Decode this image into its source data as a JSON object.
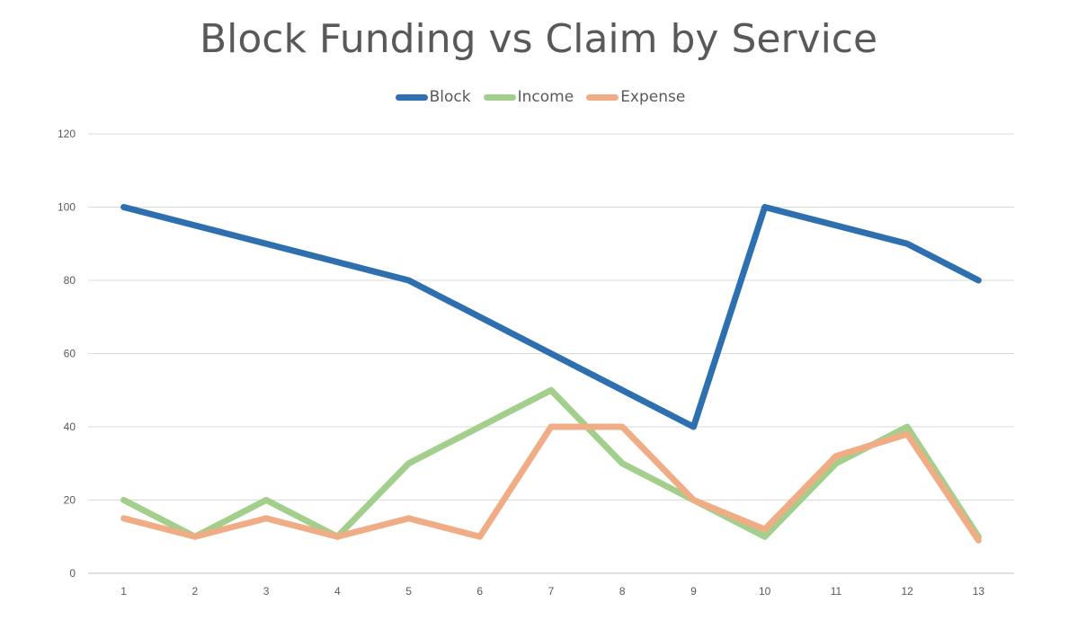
{
  "chart_data": {
    "type": "line",
    "title": "Block Funding vs Claim by Service",
    "categories": [
      "1",
      "2",
      "3",
      "4",
      "5",
      "6",
      "7",
      "8",
      "9",
      "10",
      "11",
      "12",
      "13"
    ],
    "ylim": [
      0,
      120
    ],
    "yticks": [
      "0",
      "20",
      "40",
      "60",
      "80",
      "100",
      "120"
    ],
    "grid": true,
    "legend_position": "top",
    "series": [
      {
        "name": "Block",
        "color": "#2e6fb0",
        "values": [
          100,
          95,
          90,
          85,
          80,
          70,
          60,
          50,
          40,
          100,
          95,
          90,
          80
        ]
      },
      {
        "name": "Income",
        "color": "#a3cf8c",
        "values": [
          20,
          10,
          20,
          10,
          30,
          40,
          50,
          30,
          20,
          10,
          30,
          40,
          10
        ]
      },
      {
        "name": "Expense",
        "color": "#f0ad85",
        "values": [
          15,
          10,
          15,
          10,
          15,
          10,
          40,
          40,
          20,
          12,
          32,
          38,
          9
        ]
      }
    ]
  }
}
